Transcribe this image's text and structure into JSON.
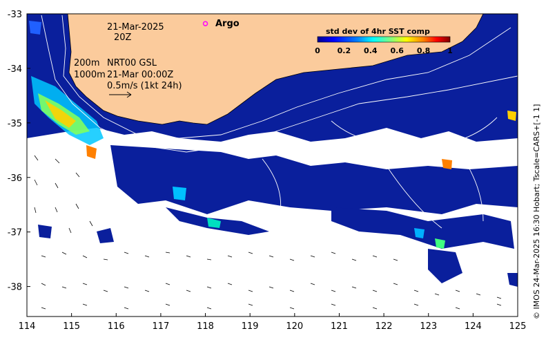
{
  "map": {
    "date_line1": "21-Mar-2025",
    "date_line2": "20Z",
    "depth_label_1": "200m",
    "depth_label_2": "1000m",
    "product_label": "NRT00 GSL",
    "product_time": "21-Mar 00:00Z",
    "velocity_scale": "0.5m/s (1kt 24h)",
    "argo_label": "Argo",
    "credit": "© IMOS 24-Mar-2025 16:30 Hobart; Tscale=CARS+[-1 1]",
    "x_ticks": [
      "114",
      "115",
      "116",
      "117",
      "118",
      "119",
      "120",
      "121",
      "122",
      "123",
      "124",
      "125"
    ],
    "y_ticks": [
      "-33",
      "-34",
      "-35",
      "-36",
      "-37",
      "-38"
    ],
    "lon_range": [
      114,
      125
    ],
    "lat_range": [
      -38.55,
      -33
    ],
    "argo_position": {
      "lon": 118.0,
      "lat": -33.18
    }
  },
  "colorbar": {
    "title": "std dev of 4hr SST comp",
    "ticks": [
      "0",
      "0.2",
      "0.4",
      "0.6",
      "0.8",
      "1"
    ],
    "range": [
      0,
      1
    ],
    "colors": [
      "#00008f",
      "#0000ff",
      "#0080ff",
      "#00ffff",
      "#80ff80",
      "#ffff00",
      "#ff8000",
      "#ff0000",
      "#800000"
    ]
  },
  "colors": {
    "land": "#fbcb9c",
    "ocean_data": "#0a1f9c",
    "argo_marker": "#ff00ff"
  }
}
